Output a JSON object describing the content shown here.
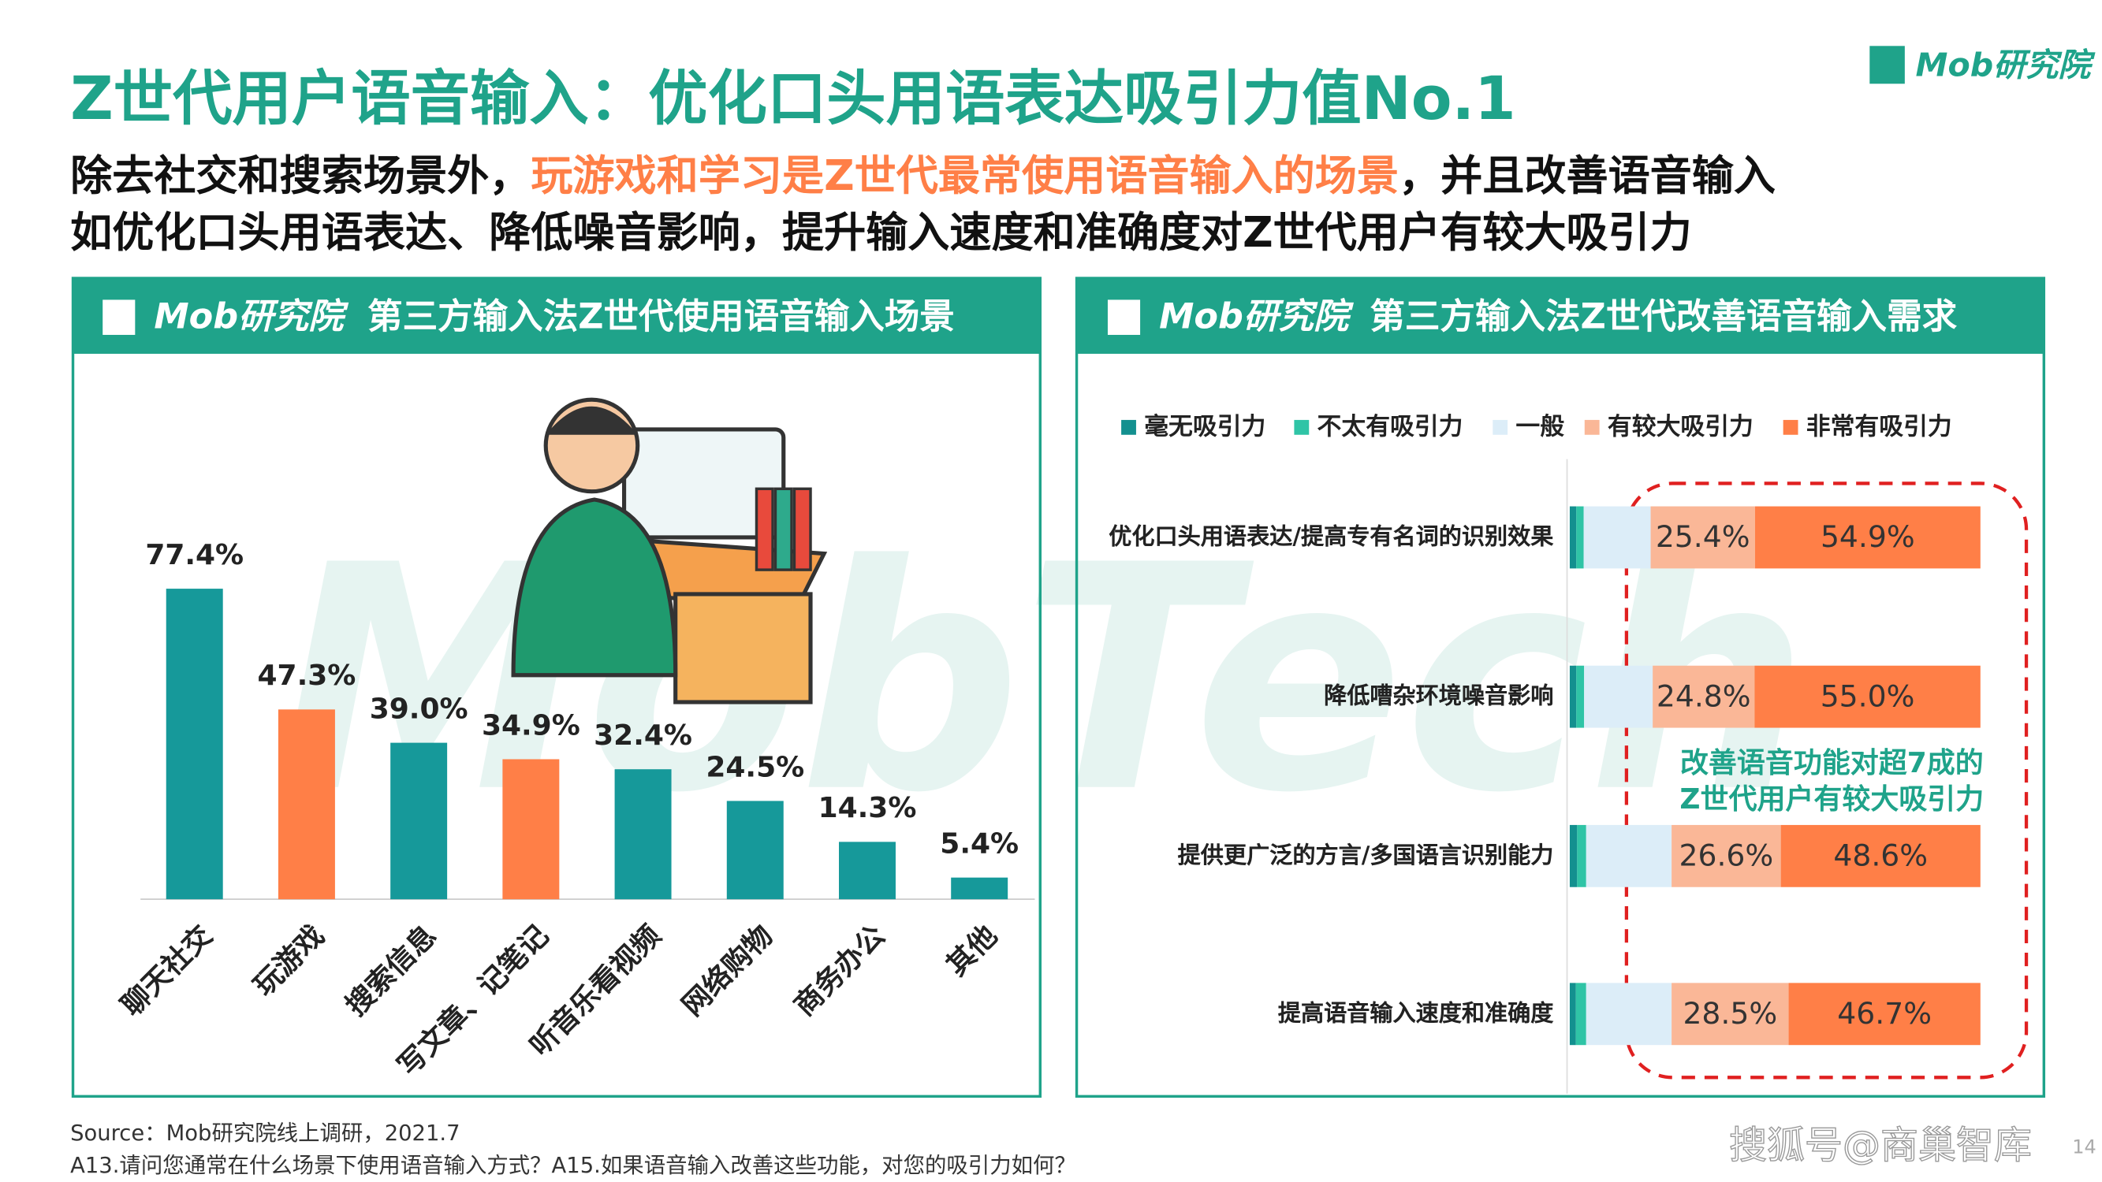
{
  "header": {
    "title": "Z世代用户语音输入：优化口头用语表达吸引力值No.1",
    "logo": "Mob研究院",
    "subtitle": [
      "除去社交和搜索场景外，",
      "玩游戏和学习是Z世代最常使用语音输入的场景",
      "，并且改善语音输入",
      "如优化口头用语表达、降低噪音影响，提升输入速度和准确度对Z世代用户有较大吸引力"
    ]
  },
  "chart_data": [
    {
      "type": "bar",
      "title": "第三方输入法Z世代使用语音输入场景",
      "categories": [
        "聊天社交",
        "玩游戏",
        "搜索信息",
        "写文章、记笔记",
        "听音乐看视频",
        "网络购物",
        "商务办公",
        "其他"
      ],
      "values": [
        77.4,
        47.3,
        39.0,
        34.9,
        32.4,
        24.5,
        14.3,
        5.4
      ],
      "value_labels": [
        "77.4%",
        "47.3%",
        "39.0%",
        "34.9%",
        "32.4%",
        "24.5%",
        "14.3%",
        "5.4%"
      ],
      "colors": [
        "#16999a",
        "#ff7f47",
        "#16999a",
        "#ff7f47",
        "#16999a",
        "#16999a",
        "#16999a",
        "#16999a"
      ]
    },
    {
      "type": "stacked-barh",
      "title": "第三方输入法Z世代改善语音输入需求",
      "categories": [
        "优化口头用语表达/提高专有名词的识别效果",
        "降低嘈杂环境噪音影响",
        "提供更广泛的方言/多国语言识别能力",
        "提高语音输入速度和准确度"
      ],
      "series": [
        {
          "name": "毫无吸引力",
          "color": "#13908f",
          "values": [
            1.6,
            1.6,
            1.8,
            1.5
          ]
        },
        {
          "name": "不太有吸引力",
          "color": "#2fc4a6",
          "values": [
            1.8,
            1.9,
            2.2,
            2.5
          ]
        },
        {
          "name": "一般",
          "color": "#dcedf8",
          "values": [
            16.3,
            16.7,
            20.8,
            20.8
          ]
        },
        {
          "name": "有较大吸引力",
          "color": "#fab797",
          "values": [
            25.4,
            24.8,
            26.6,
            28.5
          ],
          "value_labels": [
            "25.4%",
            "24.8%",
            "26.6%",
            "28.5%"
          ]
        },
        {
          "name": "非常有吸引力",
          "color": "#ff7f47",
          "values": [
            54.9,
            55.0,
            48.6,
            46.7
          ],
          "value_labels": [
            "54.9%",
            "55.0%",
            "48.6%",
            "46.7%"
          ]
        }
      ],
      "annotation": [
        "改善语音功能对超7成的",
        "Z世代用户有较大吸引力"
      ]
    }
  ],
  "footer": {
    "source": [
      "Source：Mob研究院线上调研，2021.7",
      "A13.请问您通常在什么场景下使用语音输入方式？A15.如果语音输入改善这些功能，对您的吸引力如何？"
    ],
    "watermark": "搜狐号@商巢智库",
    "page": "14",
    "background_mark": "MobTech"
  }
}
